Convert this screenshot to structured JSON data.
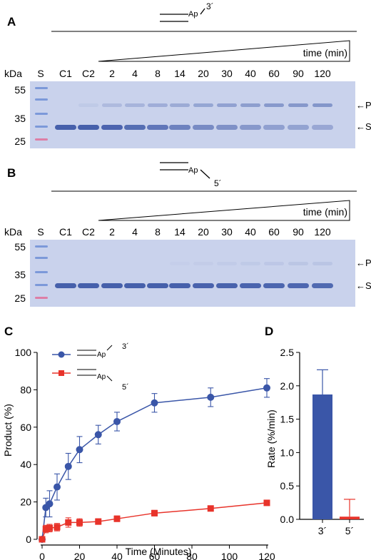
{
  "panels": {
    "A": {
      "letter": "A",
      "schematic": {
        "label": "Ap",
        "end": "3´"
      },
      "time_label": "time (min)",
      "kda_label": "kDa",
      "lanes": [
        "S",
        "C1",
        "C2",
        "2",
        "4",
        "8",
        "14",
        "20",
        "30",
        "40",
        "60",
        "90",
        "120"
      ],
      "markers": [
        "55",
        "35",
        "25"
      ],
      "band_labels": [
        "←P",
        "←S"
      ],
      "product_band_intensity": [
        0,
        0,
        0.12,
        0.35,
        0.45,
        0.55,
        0.6,
        0.68,
        0.74,
        0.8,
        0.86,
        0.88,
        0.92
      ],
      "substrate_band_intensity": [
        0,
        1,
        1,
        0.95,
        0.85,
        0.75,
        0.62,
        0.52,
        0.45,
        0.37,
        0.28,
        0.25,
        0.2
      ]
    },
    "B": {
      "letter": "B",
      "schematic": {
        "label": "Ap",
        "end": "5´"
      },
      "time_label": "time (min)",
      "kda_label": "kDa",
      "lanes": [
        "S",
        "C1",
        "C2",
        "2",
        "4",
        "8",
        "14",
        "20",
        "30",
        "40",
        "60",
        "90",
        "120"
      ],
      "markers": [
        "55",
        "35",
        "25"
      ],
      "band_labels": [
        "←P",
        "←S"
      ],
      "product_band_intensity": [
        0,
        0,
        0,
        0,
        0,
        0,
        0.05,
        0.08,
        0.1,
        0.12,
        0.15,
        0.18,
        0.2
      ],
      "substrate_band_intensity": [
        0,
        1,
        1,
        1,
        1,
        1,
        1,
        0.98,
        0.97,
        0.96,
        0.94,
        0.92,
        0.9
      ]
    },
    "C": {
      "letter": "C"
    },
    "D": {
      "letter": "D"
    }
  },
  "colors": {
    "gel_background": "#c9d2ec",
    "gel_band": "#3f5aa8",
    "marker_blue": "#6e8fd6",
    "marker_red": "#e0709a",
    "ap_red": "#e8332a",
    "series_blue": "#3a56a8",
    "series_red": "#e8332a"
  },
  "chart_data": [
    {
      "type": "line",
      "xlabel": "Time (Minutes)",
      "ylabel": "Product (%)",
      "xlim": [
        0,
        120
      ],
      "ylim": [
        0,
        100
      ],
      "xticks": [
        0,
        20,
        40,
        60,
        80,
        100,
        120
      ],
      "yticks": [
        0,
        20,
        40,
        60,
        80,
        100
      ],
      "legend": [
        {
          "label": "Ap",
          "end": "3´",
          "series": 0
        },
        {
          "label": "Ap",
          "end": "5´",
          "series": 1
        }
      ],
      "series": [
        {
          "color": "#3a56a8",
          "marker": "circle",
          "x": [
            0,
            2,
            4,
            8,
            14,
            20,
            30,
            40,
            60,
            90,
            120
          ],
          "y": [
            0,
            17,
            19,
            28,
            39,
            48,
            56,
            63,
            73,
            76,
            81
          ],
          "err": [
            0,
            5,
            7,
            7,
            7,
            7,
            5,
            5,
            5,
            5,
            5
          ]
        },
        {
          "color": "#e8332a",
          "marker": "square",
          "x": [
            0,
            2,
            4,
            8,
            14,
            20,
            30,
            40,
            60,
            90,
            120
          ],
          "y": [
            0,
            5.5,
            6,
            6.5,
            9,
            9,
            9.5,
            11,
            14,
            16.5,
            19.5
          ],
          "err": [
            0,
            2,
            2,
            2,
            2.5,
            2,
            1.5,
            1.5,
            1.5,
            1,
            1
          ]
        }
      ]
    },
    {
      "type": "bar",
      "ylabel": "Rate (%/min)",
      "ylim": [
        0,
        2.5
      ],
      "yticks": [
        "0.0",
        "0.5",
        "1.0",
        "1.5",
        "2.0",
        "2.5"
      ],
      "categories": [
        "3´",
        "5´"
      ],
      "values": [
        1.87,
        0.04
      ],
      "err": [
        0.37,
        0.26
      ],
      "colors": [
        "#3a56a8",
        "#e8332a"
      ]
    }
  ]
}
